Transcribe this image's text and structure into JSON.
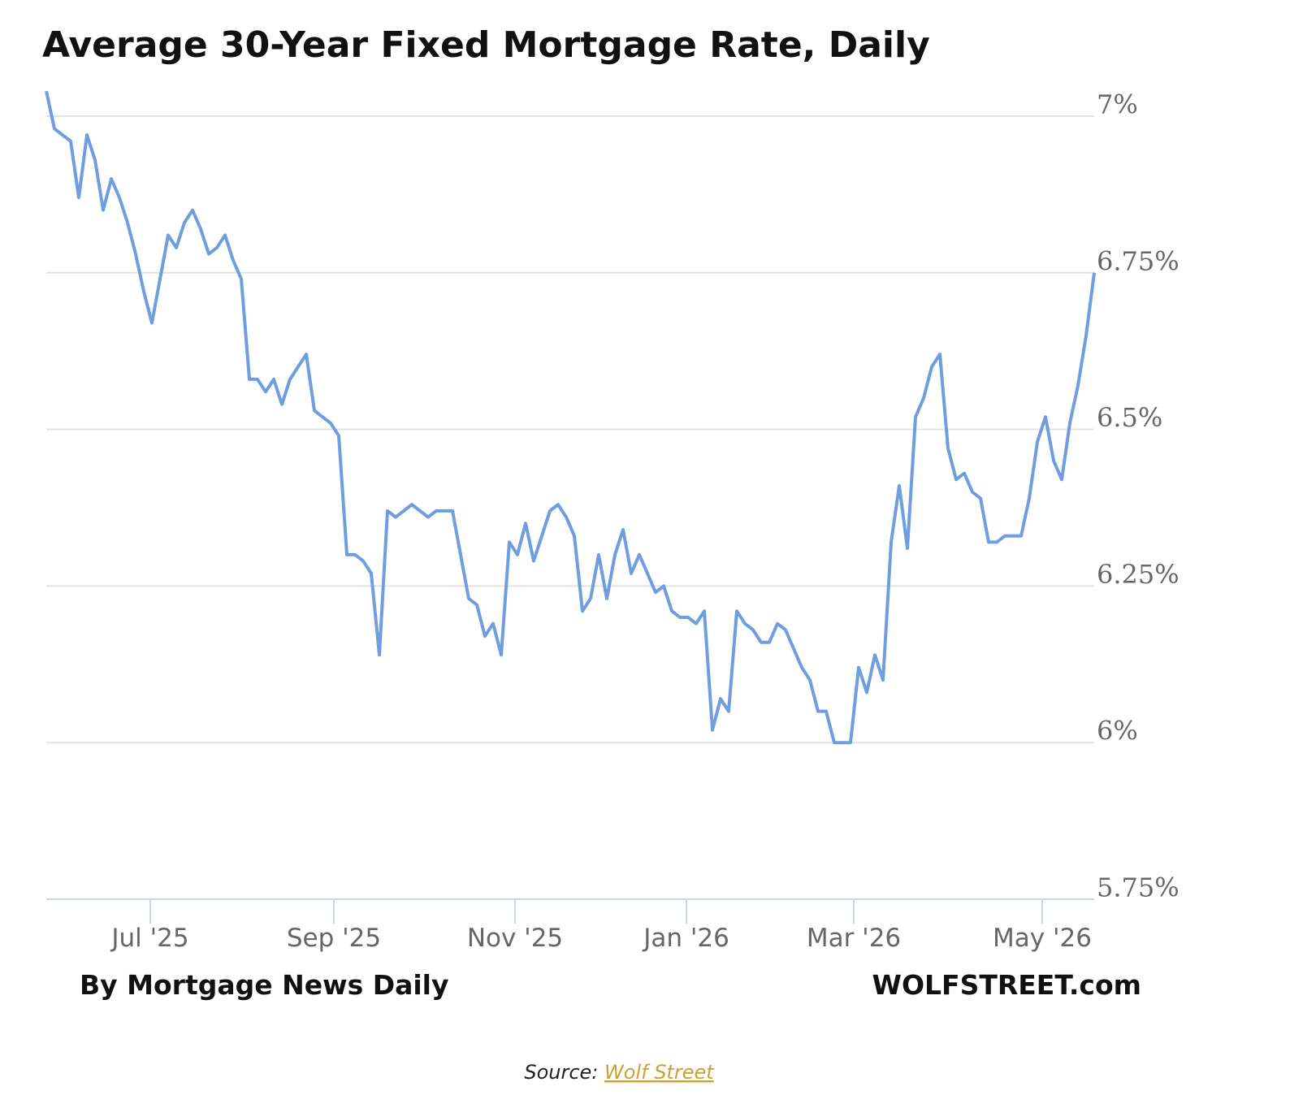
{
  "chart_data": {
    "type": "line",
    "title": "Average 30-Year Fixed Mortgage Rate, Daily",
    "series": [
      {
        "name": "30-Year Fixed",
        "color": "#6f9ee0",
        "values": [
          7.04,
          6.98,
          6.97,
          6.96,
          6.87,
          6.97,
          6.93,
          6.85,
          6.9,
          6.87,
          6.83,
          6.78,
          6.72,
          6.67,
          6.74,
          6.81,
          6.79,
          6.83,
          6.85,
          6.82,
          6.78,
          6.79,
          6.81,
          6.77,
          6.74,
          6.58,
          6.58,
          6.56,
          6.58,
          6.54,
          6.58,
          6.6,
          6.62,
          6.53,
          6.52,
          6.51,
          6.49,
          6.3,
          6.3,
          6.29,
          6.27,
          6.14,
          6.37,
          6.36,
          6.37,
          6.38,
          6.37,
          6.36,
          6.37,
          6.37,
          6.37,
          6.3,
          6.23,
          6.22,
          6.17,
          6.19,
          6.14,
          6.32,
          6.3,
          6.35,
          6.29,
          6.33,
          6.37,
          6.38,
          6.36,
          6.33,
          6.21,
          6.23,
          6.3,
          6.23,
          6.3,
          6.34,
          6.27,
          6.3,
          6.27,
          6.24,
          6.25,
          6.21,
          6.2,
          6.2,
          6.19,
          6.21,
          6.02,
          6.07,
          6.05,
          6.21,
          6.19,
          6.18,
          6.16,
          6.16,
          6.19,
          6.18,
          6.15,
          6.12,
          6.1,
          6.05,
          6.05,
          6.0,
          6.0,
          6.0,
          6.12,
          6.08,
          6.14,
          6.1,
          6.32,
          6.41,
          6.31,
          6.52,
          6.55,
          6.6,
          6.62,
          6.47,
          6.42,
          6.43,
          6.4,
          6.39,
          6.32,
          6.32,
          6.33,
          6.33,
          6.33,
          6.39,
          6.48,
          6.52,
          6.45,
          6.42,
          6.51,
          6.57,
          6.65,
          6.75
        ]
      }
    ],
    "xlim": [
      0,
      129
    ],
    "xticks": [
      {
        "value": 12.8,
        "label": "Jul '25"
      },
      {
        "value": 35.4,
        "label": "Sep '25"
      },
      {
        "value": 57.7,
        "label": "Nov '25"
      },
      {
        "value": 78.8,
        "label": "Jan '26"
      },
      {
        "value": 99.4,
        "label": "Mar '26"
      },
      {
        "value": 122.6,
        "label": "May '26"
      }
    ],
    "ylim": [
      5.75,
      7
    ],
    "yticks": [
      {
        "value": 5.75,
        "label": "5.75%"
      },
      {
        "value": 6,
        "label": "6%"
      },
      {
        "value": 6.25,
        "label": "6.25%"
      },
      {
        "value": 6.5,
        "label": "6.5%"
      },
      {
        "value": 6.75,
        "label": "6.75%"
      },
      {
        "value": 7,
        "label": "7%"
      }
    ],
    "grid": true,
    "footer_left": "By Mortgage News Daily",
    "footer_right": "WOLFSTREET.com"
  },
  "source": {
    "prefix": "Source:",
    "link": "Wolf Street"
  }
}
